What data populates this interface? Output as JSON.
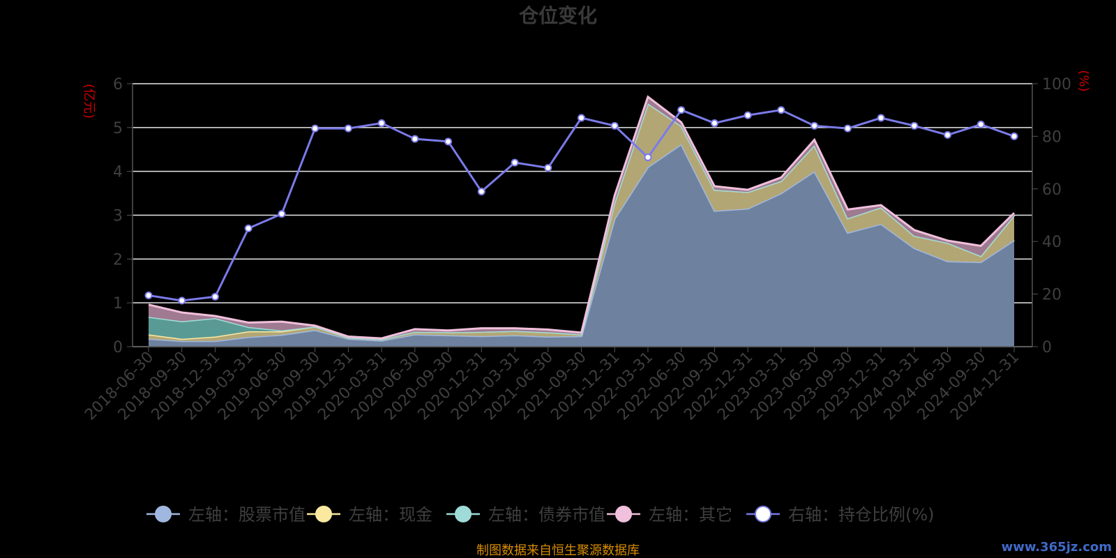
{
  "chart_data": {
    "type": "area",
    "title": "仓位变化",
    "left_axis_unit": "(亿元)",
    "right_axis_unit": "(%)",
    "ylim_left": [
      0,
      6
    ],
    "yticks_left": [
      0,
      1,
      2,
      3,
      4,
      5,
      6
    ],
    "ylim_right": [
      0,
      100
    ],
    "yticks_right": [
      0,
      20,
      40,
      60,
      80,
      100
    ],
    "grid": true,
    "legend_position": "bottom",
    "x": [
      "2018-06-30",
      "2018-09-30",
      "2018-12-31",
      "2019-03-31",
      "2019-06-30",
      "2019-09-30",
      "2019-12-31",
      "2020-03-31",
      "2020-06-30",
      "2020-09-30",
      "2020-12-31",
      "2021-03-31",
      "2021-06-30",
      "2021-09-30",
      "2021-12-31",
      "2022-03-31",
      "2022-06-30",
      "2022-09-30",
      "2022-12-31",
      "2023-03-31",
      "2023-06-30",
      "2023-09-30",
      "2023-12-31",
      "2024-03-31",
      "2024-06-30",
      "2024-09-30",
      "2024-12-31"
    ],
    "series": [
      {
        "name": "左轴：股票市值",
        "axis": "left",
        "kind": "stacked-area",
        "color": "#a0b8e0",
        "fill": "#6e82a0",
        "values": [
          0.18,
          0.13,
          0.13,
          0.22,
          0.27,
          0.38,
          0.18,
          0.14,
          0.28,
          0.26,
          0.24,
          0.26,
          0.23,
          0.24,
          2.92,
          4.1,
          4.62,
          3.1,
          3.15,
          3.5,
          4.0,
          2.6,
          2.8,
          2.25,
          1.95,
          1.93,
          2.43
        ]
      },
      {
        "name": "左轴：现金",
        "axis": "left",
        "kind": "stacked-area",
        "color": "#fbe9a0",
        "fill": "#b3a675",
        "values": [
          0.1,
          0.05,
          0.1,
          0.13,
          0.08,
          0.08,
          0.03,
          0.03,
          0.06,
          0.07,
          0.1,
          0.1,
          0.1,
          0.04,
          0.38,
          1.45,
          0.42,
          0.48,
          0.38,
          0.28,
          0.6,
          0.33,
          0.38,
          0.28,
          0.42,
          0.14,
          0.57
        ]
      },
      {
        "name": "左轴：债券市值",
        "axis": "left",
        "kind": "stacked-area",
        "color": "#9fdcd8",
        "fill": "#5a9a94",
        "values": [
          0.4,
          0.4,
          0.42,
          0.1,
          0.02,
          0,
          0,
          0,
          0,
          0,
          0,
          0,
          0,
          0,
          0,
          0,
          0,
          0,
          0,
          0,
          0,
          0,
          0,
          0,
          0,
          0,
          0
        ]
      },
      {
        "name": "左轴：其它",
        "axis": "left",
        "kind": "stacked-area",
        "color": "#f0c0dc",
        "fill": "#a07a90",
        "values": [
          0.28,
          0.2,
          0.05,
          0.1,
          0.2,
          0.02,
          0.02,
          0.02,
          0.06,
          0.04,
          0.08,
          0.06,
          0.06,
          0.04,
          0.15,
          0.15,
          0.08,
          0.08,
          0.05,
          0.08,
          0.12,
          0.2,
          0.05,
          0.13,
          0.05,
          0.23,
          0.05
        ]
      },
      {
        "name": "右轴：持仓比例(%)",
        "axis": "right",
        "kind": "line",
        "color": "#7b7bea",
        "values": [
          19.5,
          17.5,
          19,
          45,
          50.5,
          83,
          83,
          85,
          79,
          78,
          59,
          70,
          68,
          87,
          84,
          72,
          90,
          85,
          88,
          90,
          84,
          83,
          87,
          84,
          80.5,
          84.5,
          80
        ]
      }
    ]
  },
  "footer": {
    "source_note": "制图数据来自恒生聚源数据库",
    "watermark": "www.365jz.com"
  }
}
